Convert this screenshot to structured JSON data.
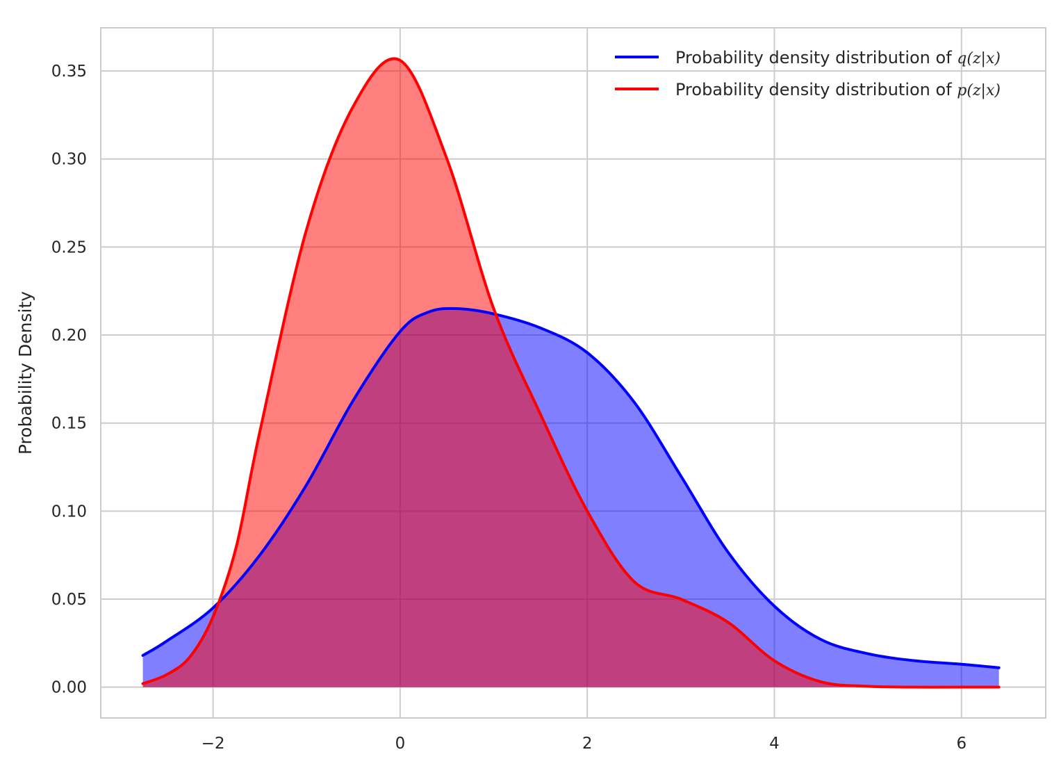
{
  "chart_data": {
    "type": "area",
    "title": "",
    "xlabel": "",
    "ylabel": "Probability Density",
    "xlim": [
      -3.2,
      6.9
    ],
    "ylim": [
      -0.0175,
      0.3745
    ],
    "xticks": [
      -2,
      0,
      2,
      4,
      6
    ],
    "xtick_labels": [
      "−2",
      "0",
      "2",
      "4",
      "6"
    ],
    "yticks": [
      0.0,
      0.05,
      0.1,
      0.15,
      0.2,
      0.25,
      0.3,
      0.35
    ],
    "ytick_labels": [
      "0.00",
      "0.05",
      "0.10",
      "0.15",
      "0.20",
      "0.25",
      "0.30",
      "0.35"
    ],
    "grid": true,
    "legend_position": "top-right",
    "series": [
      {
        "name_prefix": "Probability density distribution of ",
        "name_math": "q(z|x)",
        "color": "#0000ff",
        "fill_alpha": 0.5,
        "x": [
          -2.75,
          -2.5,
          -2.0,
          -1.5,
          -1.0,
          -0.5,
          0.0,
          0.3,
          0.6,
          1.0,
          1.5,
          2.0,
          2.5,
          3.0,
          3.5,
          4.0,
          4.5,
          5.0,
          5.5,
          6.0,
          6.4
        ],
        "y": [
          0.018,
          0.026,
          0.045,
          0.075,
          0.115,
          0.163,
          0.202,
          0.213,
          0.215,
          0.212,
          0.204,
          0.19,
          0.162,
          0.12,
          0.077,
          0.046,
          0.027,
          0.019,
          0.015,
          0.013,
          0.011
        ]
      },
      {
        "name_prefix": "Probability density distribution of ",
        "name_math": "p(z|x)",
        "color": "#ff0000",
        "fill_alpha": 0.5,
        "x": [
          -2.75,
          -2.5,
          -2.25,
          -2.0,
          -1.75,
          -1.5,
          -1.0,
          -0.5,
          0.0,
          0.5,
          1.0,
          1.5,
          2.0,
          2.5,
          3.0,
          3.5,
          4.0,
          4.5,
          5.0,
          5.5,
          6.0,
          6.4
        ],
        "y": [
          0.002,
          0.007,
          0.017,
          0.04,
          0.08,
          0.145,
          0.26,
          0.33,
          0.356,
          0.3,
          0.215,
          0.155,
          0.1,
          0.06,
          0.05,
          0.037,
          0.015,
          0.003,
          0.0005,
          0.0,
          0.0,
          0.0
        ]
      }
    ]
  }
}
